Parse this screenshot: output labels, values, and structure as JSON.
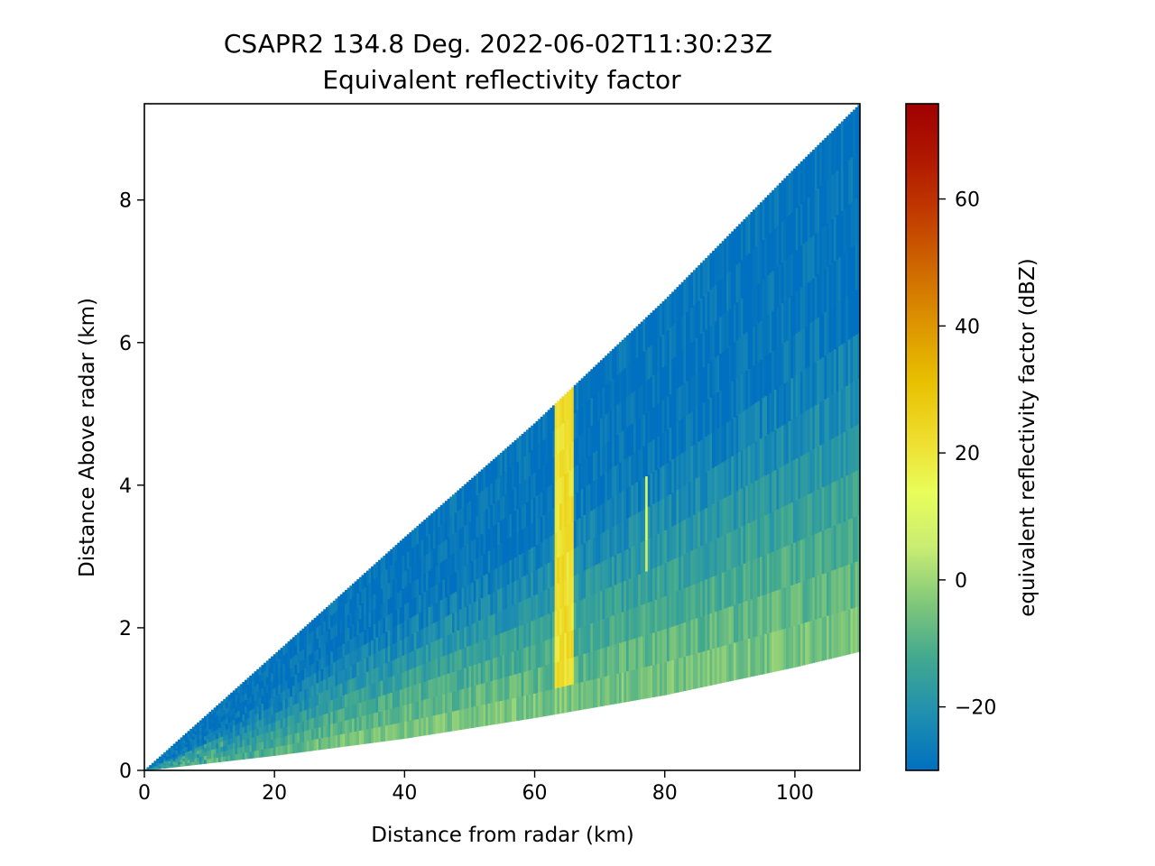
{
  "chart_data": [
    {
      "type": "heatmap",
      "title": "CSAPR2 134.8 Deg. 2022-06-02T11:30:23Z",
      "subtitle": "Equivalent reflectivity factor",
      "xlabel": "Distance from radar (km)",
      "ylabel": "Distance Above radar  (km)",
      "xlim": [
        0,
        110
      ],
      "ylim": [
        0,
        9.35
      ],
      "xticks": [
        0,
        20,
        40,
        60,
        80,
        100
      ],
      "xtick_labels": [
        "0",
        "20",
        "40",
        "60",
        "80",
        "100"
      ],
      "yticks": [
        0,
        2,
        4,
        6,
        8
      ],
      "ytick_labels": [
        "0",
        "2",
        "4",
        "6",
        "8"
      ],
      "grid": false,
      "scan": {
        "range_max_km": 110,
        "lower_edge_height_km": [
          [
            0,
            0
          ],
          [
            20,
            0.21
          ],
          [
            40,
            0.45
          ],
          [
            60,
            0.74
          ],
          [
            80,
            1.06
          ],
          [
            100,
            1.45
          ],
          [
            110,
            1.67
          ]
        ],
        "upper_edge_height_km": [
          [
            0,
            0
          ],
          [
            20,
            1.63
          ],
          [
            40,
            3.27
          ],
          [
            60,
            4.87
          ],
          [
            80,
            6.6
          ],
          [
            100,
            8.45
          ],
          [
            110,
            9.35
          ]
        ]
      },
      "features": [
        {
          "range_km": [
            63,
            66
          ],
          "height_km": [
            1.1,
            5.35
          ],
          "dbz": 22
        },
        {
          "range_km": [
            77,
            77.5
          ],
          "height_km": [
            2.8,
            4.1
          ],
          "dbz": 8
        }
      ]
    },
    {
      "type": "colorbar",
      "label": "equivalent reflectivity factor (dBZ)",
      "lim": [
        -30,
        75
      ],
      "ticks": [
        -20,
        0,
        20,
        40,
        60
      ],
      "tick_labels": [
        "−20",
        "0",
        "20",
        "40",
        "60"
      ],
      "colormap": [
        "#0070c0",
        "#1f8fb0",
        "#41a890",
        "#7fc77a",
        "#c8ec73",
        "#e9fd5a",
        "#eedc2c",
        "#e8c000",
        "#dd9600",
        "#cf6a00",
        "#c23c00",
        "#b01800",
        "#a00000"
      ]
    }
  ]
}
